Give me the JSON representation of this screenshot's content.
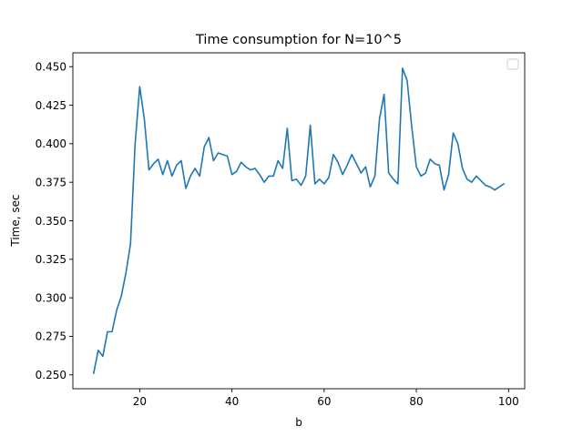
{
  "chart_data": {
    "type": "line",
    "title": "Time consumption for N=10^5",
    "xlabel": "b",
    "ylabel": "Time, sec",
    "xlim": [
      5.5,
      103.5
    ],
    "ylim": [
      0.241,
      0.459
    ],
    "xticks": [
      20,
      40,
      60,
      80,
      100
    ],
    "yticks": [
      0.25,
      0.275,
      0.3,
      0.325,
      0.35,
      0.375,
      0.4,
      0.425,
      0.45
    ],
    "ytick_labels": [
      "0.250",
      "0.275",
      "0.300",
      "0.325",
      "0.350",
      "0.375",
      "0.400",
      "0.425",
      "0.450"
    ],
    "grid": false,
    "legend": "top-right (empty)",
    "color": "#1f77b4",
    "series": [
      {
        "x": [
          10,
          11,
          12,
          13,
          14,
          15,
          16,
          17,
          18,
          19,
          20,
          21,
          22,
          23,
          24,
          25,
          26,
          27,
          28,
          29,
          30,
          31,
          32,
          33,
          34,
          35,
          36,
          37,
          38,
          39,
          40,
          41,
          42,
          43,
          44,
          45,
          46,
          47,
          48,
          49,
          50,
          51,
          52,
          53,
          54,
          55,
          56,
          57,
          58,
          59,
          60,
          61,
          62,
          63,
          64,
          65,
          66,
          67,
          68,
          69,
          70,
          71,
          72,
          73,
          74,
          75,
          76,
          77,
          78,
          79,
          80,
          81,
          82,
          83,
          84,
          85,
          86,
          87,
          88,
          89,
          90,
          91,
          92,
          93,
          94,
          95,
          96,
          97,
          98,
          99
        ],
        "values": [
          0.251,
          0.266,
          0.262,
          0.278,
          0.278,
          0.292,
          0.301,
          0.316,
          0.335,
          0.4,
          0.437,
          0.416,
          0.383,
          0.387,
          0.39,
          0.38,
          0.389,
          0.379,
          0.386,
          0.389,
          0.371,
          0.379,
          0.384,
          0.379,
          0.398,
          0.404,
          0.389,
          0.394,
          0.393,
          0.392,
          0.38,
          0.382,
          0.388,
          0.385,
          0.383,
          0.384,
          0.38,
          0.375,
          0.379,
          0.379,
          0.389,
          0.384,
          0.41,
          0.376,
          0.377,
          0.373,
          0.379,
          0.412,
          0.374,
          0.377,
          0.374,
          0.378,
          0.393,
          0.388,
          0.38,
          0.386,
          0.393,
          0.387,
          0.381,
          0.385,
          0.372,
          0.379,
          0.416,
          0.432,
          0.381,
          0.377,
          0.374,
          0.449,
          0.441,
          0.411,
          0.385,
          0.379,
          0.381,
          0.39,
          0.387,
          0.386,
          0.37,
          0.38,
          0.407,
          0.4,
          0.384,
          0.377,
          0.375,
          0.379,
          0.376,
          0.373,
          0.372,
          0.37,
          0.372,
          0.374
        ]
      }
    ]
  }
}
